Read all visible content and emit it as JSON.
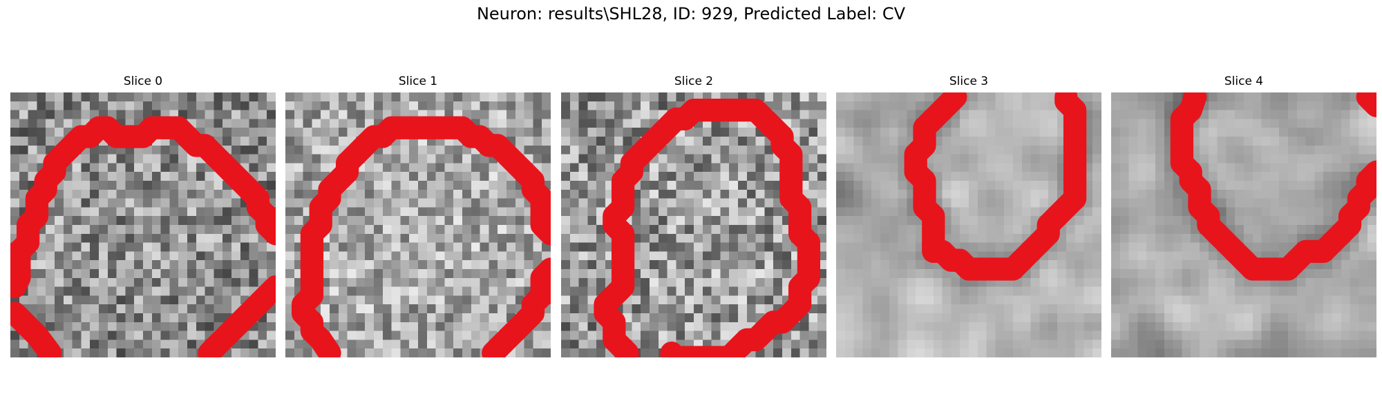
{
  "figure": {
    "title": "Neuron: results\\SHL28, ID: 929, Predicted Label: CV",
    "contour_color": "#e8141c"
  },
  "panels": [
    {
      "title": "Slice 0"
    },
    {
      "title": "Slice 1"
    },
    {
      "title": "Slice 2"
    },
    {
      "title": "Slice 3"
    },
    {
      "title": "Slice 4"
    }
  ]
}
